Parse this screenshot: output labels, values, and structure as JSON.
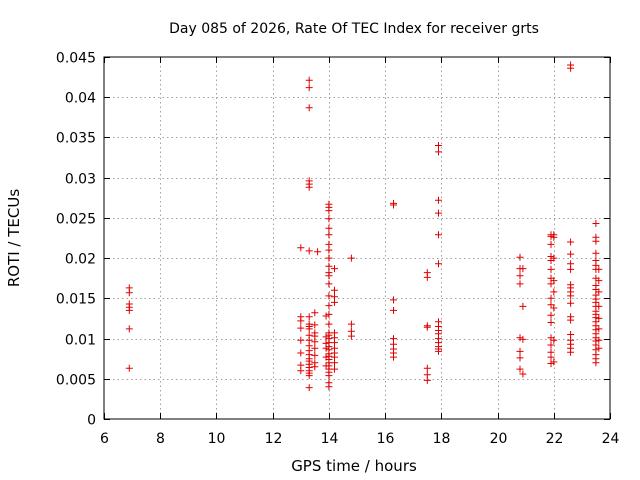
{
  "chart_data": {
    "type": "scatter",
    "title": "Day 085 of 2026, Rate Of TEC Index for receiver grts",
    "xlabel": "GPS time / hours",
    "ylabel": "ROTI / TECUs",
    "xlim": [
      6,
      24
    ],
    "ylim": [
      0,
      0.045
    ],
    "xticks": [
      6,
      8,
      10,
      12,
      14,
      16,
      18,
      20,
      22,
      24
    ],
    "xtick_labels": [
      "6",
      "8",
      "10",
      "12",
      "14",
      "16",
      "18",
      "20",
      "22",
      "24"
    ],
    "yticks": [
      0,
      0.005,
      0.01,
      0.015,
      0.02,
      0.025,
      0.03,
      0.035,
      0.04,
      0.045
    ],
    "ytick_labels": [
      "0",
      "0.005",
      "0.01",
      "0.015",
      "0.02",
      "0.025",
      "0.03",
      "0.035",
      "0.04",
      "0.045"
    ],
    "grid": true,
    "marker": "+",
    "color": "#e00000",
    "series": [
      {
        "name": "ROTI",
        "points": [
          [
            6.9,
            0.0163
          ],
          [
            6.9,
            0.0157
          ],
          [
            6.9,
            0.0143
          ],
          [
            6.9,
            0.0139
          ],
          [
            6.9,
            0.0135
          ],
          [
            6.9,
            0.0112
          ],
          [
            6.9,
            0.0063
          ],
          [
            13.0,
            0.0213
          ],
          [
            13.0,
            0.0127
          ],
          [
            13.0,
            0.0122
          ],
          [
            13.0,
            0.0113
          ],
          [
            13.0,
            0.0098
          ],
          [
            13.0,
            0.0082
          ],
          [
            13.0,
            0.0067
          ],
          [
            13.0,
            0.006
          ],
          [
            13.3,
            0.0421
          ],
          [
            13.3,
            0.0412
          ],
          [
            13.3,
            0.0387
          ],
          [
            13.3,
            0.0296
          ],
          [
            13.3,
            0.0292
          ],
          [
            13.3,
            0.0288
          ],
          [
            13.3,
            0.0209
          ],
          [
            13.3,
            0.0127
          ],
          [
            13.3,
            0.0118
          ],
          [
            13.3,
            0.0115
          ],
          [
            13.3,
            0.0112
          ],
          [
            13.3,
            0.0104
          ],
          [
            13.3,
            0.0098
          ],
          [
            13.3,
            0.0091
          ],
          [
            13.3,
            0.0085
          ],
          [
            13.3,
            0.008
          ],
          [
            13.3,
            0.0075
          ],
          [
            13.3,
            0.0072
          ],
          [
            13.3,
            0.0068
          ],
          [
            13.3,
            0.0064
          ],
          [
            13.3,
            0.006
          ],
          [
            13.3,
            0.0057
          ],
          [
            13.3,
            0.0054
          ],
          [
            13.3,
            0.0039
          ],
          [
            13.5,
            0.0132
          ],
          [
            13.5,
            0.0117
          ],
          [
            13.5,
            0.0107
          ],
          [
            13.5,
            0.0103
          ],
          [
            13.5,
            0.0096
          ],
          [
            13.5,
            0.0088
          ],
          [
            13.5,
            0.0079
          ],
          [
            13.5,
            0.007
          ],
          [
            13.5,
            0.0065
          ],
          [
            13.6,
            0.0208
          ],
          [
            13.9,
            0.0128
          ],
          [
            13.9,
            0.0102
          ],
          [
            13.9,
            0.0094
          ],
          [
            13.9,
            0.0088
          ],
          [
            13.9,
            0.0077
          ],
          [
            13.9,
            0.0066
          ],
          [
            14.0,
            0.0267
          ],
          [
            14.0,
            0.0263
          ],
          [
            14.0,
            0.0259
          ],
          [
            14.0,
            0.0249
          ],
          [
            14.0,
            0.0237
          ],
          [
            14.0,
            0.0229
          ],
          [
            14.0,
            0.0217
          ],
          [
            14.0,
            0.021
          ],
          [
            14.0,
            0.02
          ],
          [
            14.0,
            0.019
          ],
          [
            14.0,
            0.0182
          ],
          [
            14.0,
            0.0178
          ],
          [
            14.0,
            0.0168
          ],
          [
            14.0,
            0.0153
          ],
          [
            14.0,
            0.0141
          ],
          [
            14.0,
            0.013
          ],
          [
            14.0,
            0.0118
          ],
          [
            14.0,
            0.0107
          ],
          [
            14.0,
            0.0104
          ],
          [
            14.0,
            0.01
          ],
          [
            14.0,
            0.0095
          ],
          [
            14.0,
            0.009
          ],
          [
            14.0,
            0.0086
          ],
          [
            14.0,
            0.0081
          ],
          [
            14.0,
            0.0078
          ],
          [
            14.0,
            0.0074
          ],
          [
            14.0,
            0.007
          ],
          [
            14.0,
            0.0066
          ],
          [
            14.0,
            0.0062
          ],
          [
            14.0,
            0.0058
          ],
          [
            14.0,
            0.0054
          ],
          [
            14.0,
            0.0045
          ],
          [
            14.0,
            0.004
          ],
          [
            14.2,
            0.0187
          ],
          [
            14.2,
            0.016
          ],
          [
            14.2,
            0.0152
          ],
          [
            14.2,
            0.0145
          ],
          [
            14.2,
            0.0107
          ],
          [
            14.2,
            0.0101
          ],
          [
            14.2,
            0.0095
          ],
          [
            14.2,
            0.0088
          ],
          [
            14.2,
            0.0082
          ],
          [
            14.2,
            0.0077
          ],
          [
            14.2,
            0.007
          ],
          [
            14.2,
            0.0062
          ],
          [
            14.8,
            0.02
          ],
          [
            14.8,
            0.0118
          ],
          [
            14.8,
            0.0109
          ],
          [
            14.8,
            0.0103
          ],
          [
            16.3,
            0.0268
          ],
          [
            16.3,
            0.0266
          ],
          [
            16.3,
            0.0148
          ],
          [
            16.3,
            0.0135
          ],
          [
            16.3,
            0.01
          ],
          [
            16.3,
            0.0093
          ],
          [
            16.3,
            0.0087
          ],
          [
            16.3,
            0.0082
          ],
          [
            16.3,
            0.0077
          ],
          [
            17.5,
            0.0182
          ],
          [
            17.5,
            0.0176
          ],
          [
            17.5,
            0.0116
          ],
          [
            17.5,
            0.0114
          ],
          [
            17.5,
            0.0063
          ],
          [
            17.5,
            0.0055
          ],
          [
            17.5,
            0.0048
          ],
          [
            17.9,
            0.034
          ],
          [
            17.9,
            0.0332
          ],
          [
            17.9,
            0.0272
          ],
          [
            17.9,
            0.0256
          ],
          [
            17.9,
            0.0229
          ],
          [
            17.9,
            0.0193
          ],
          [
            17.9,
            0.0121
          ],
          [
            17.9,
            0.0115
          ],
          [
            17.9,
            0.011
          ],
          [
            17.9,
            0.0106
          ],
          [
            17.9,
            0.01
          ],
          [
            17.9,
            0.0095
          ],
          [
            17.9,
            0.009
          ],
          [
            17.9,
            0.0087
          ],
          [
            17.9,
            0.0084
          ],
          [
            20.8,
            0.0201
          ],
          [
            20.8,
            0.0187
          ],
          [
            20.8,
            0.0178
          ],
          [
            20.8,
            0.0168
          ],
          [
            20.8,
            0.0101
          ],
          [
            20.8,
            0.0084
          ],
          [
            20.8,
            0.0076
          ],
          [
            20.8,
            0.0062
          ],
          [
            20.9,
            0.0187
          ],
          [
            20.9,
            0.014
          ],
          [
            20.9,
            0.0099
          ],
          [
            20.9,
            0.0056
          ],
          [
            21.9,
            0.0229
          ],
          [
            21.9,
            0.0227
          ],
          [
            21.9,
            0.0217
          ],
          [
            21.9,
            0.0202
          ],
          [
            21.9,
            0.0197
          ],
          [
            21.9,
            0.0186
          ],
          [
            21.9,
            0.0175
          ],
          [
            21.9,
            0.0168
          ],
          [
            21.9,
            0.015
          ],
          [
            21.9,
            0.0142
          ],
          [
            21.9,
            0.0129
          ],
          [
            21.9,
            0.012
          ],
          [
            21.9,
            0.0101
          ],
          [
            21.9,
            0.0092
          ],
          [
            21.9,
            0.0083
          ],
          [
            21.9,
            0.0077
          ],
          [
            21.9,
            0.0069
          ],
          [
            22.0,
            0.0229
          ],
          [
            22.0,
            0.0226
          ],
          [
            22.0,
            0.02
          ],
          [
            22.0,
            0.0172
          ],
          [
            22.0,
            0.0158
          ],
          [
            22.0,
            0.0138
          ],
          [
            22.0,
            0.0098
          ],
          [
            22.0,
            0.0071
          ],
          [
            22.6,
            0.044
          ],
          [
            22.6,
            0.0436
          ],
          [
            22.6,
            0.022
          ],
          [
            22.6,
            0.0205
          ],
          [
            22.6,
            0.0193
          ],
          [
            22.6,
            0.0186
          ],
          [
            22.6,
            0.0167
          ],
          [
            22.6,
            0.0163
          ],
          [
            22.6,
            0.0158
          ],
          [
            22.6,
            0.0153
          ],
          [
            22.6,
            0.0144
          ],
          [
            22.6,
            0.0127
          ],
          [
            22.6,
            0.0123
          ],
          [
            22.6,
            0.0105
          ],
          [
            22.6,
            0.0098
          ],
          [
            22.6,
            0.0093
          ],
          [
            22.6,
            0.0088
          ],
          [
            22.6,
            0.0083
          ],
          [
            23.5,
            0.0243
          ],
          [
            23.5,
            0.0226
          ],
          [
            23.5,
            0.0221
          ],
          [
            23.5,
            0.0206
          ],
          [
            23.5,
            0.0197
          ],
          [
            23.5,
            0.0191
          ],
          [
            23.5,
            0.0186
          ],
          [
            23.5,
            0.0175
          ],
          [
            23.5,
            0.0166
          ],
          [
            23.5,
            0.0161
          ],
          [
            23.5,
            0.0154
          ],
          [
            23.5,
            0.0149
          ],
          [
            23.5,
            0.0145
          ],
          [
            23.5,
            0.014
          ],
          [
            23.5,
            0.0134
          ],
          [
            23.5,
            0.013
          ],
          [
            23.5,
            0.0126
          ],
          [
            23.5,
            0.0121
          ],
          [
            23.5,
            0.0116
          ],
          [
            23.5,
            0.0111
          ],
          [
            23.5,
            0.0106
          ],
          [
            23.5,
            0.0101
          ],
          [
            23.5,
            0.0097
          ],
          [
            23.5,
            0.0092
          ],
          [
            23.5,
            0.0086
          ],
          [
            23.5,
            0.008
          ],
          [
            23.5,
            0.0075
          ],
          [
            23.5,
            0.007
          ],
          [
            23.6,
            0.0186
          ],
          [
            23.6,
            0.0172
          ],
          [
            23.6,
            0.0158
          ],
          [
            23.6,
            0.014
          ],
          [
            23.6,
            0.0125
          ],
          [
            23.6,
            0.0112
          ],
          [
            23.6,
            0.0098
          ],
          [
            23.6,
            0.0088
          ]
        ]
      }
    ]
  }
}
